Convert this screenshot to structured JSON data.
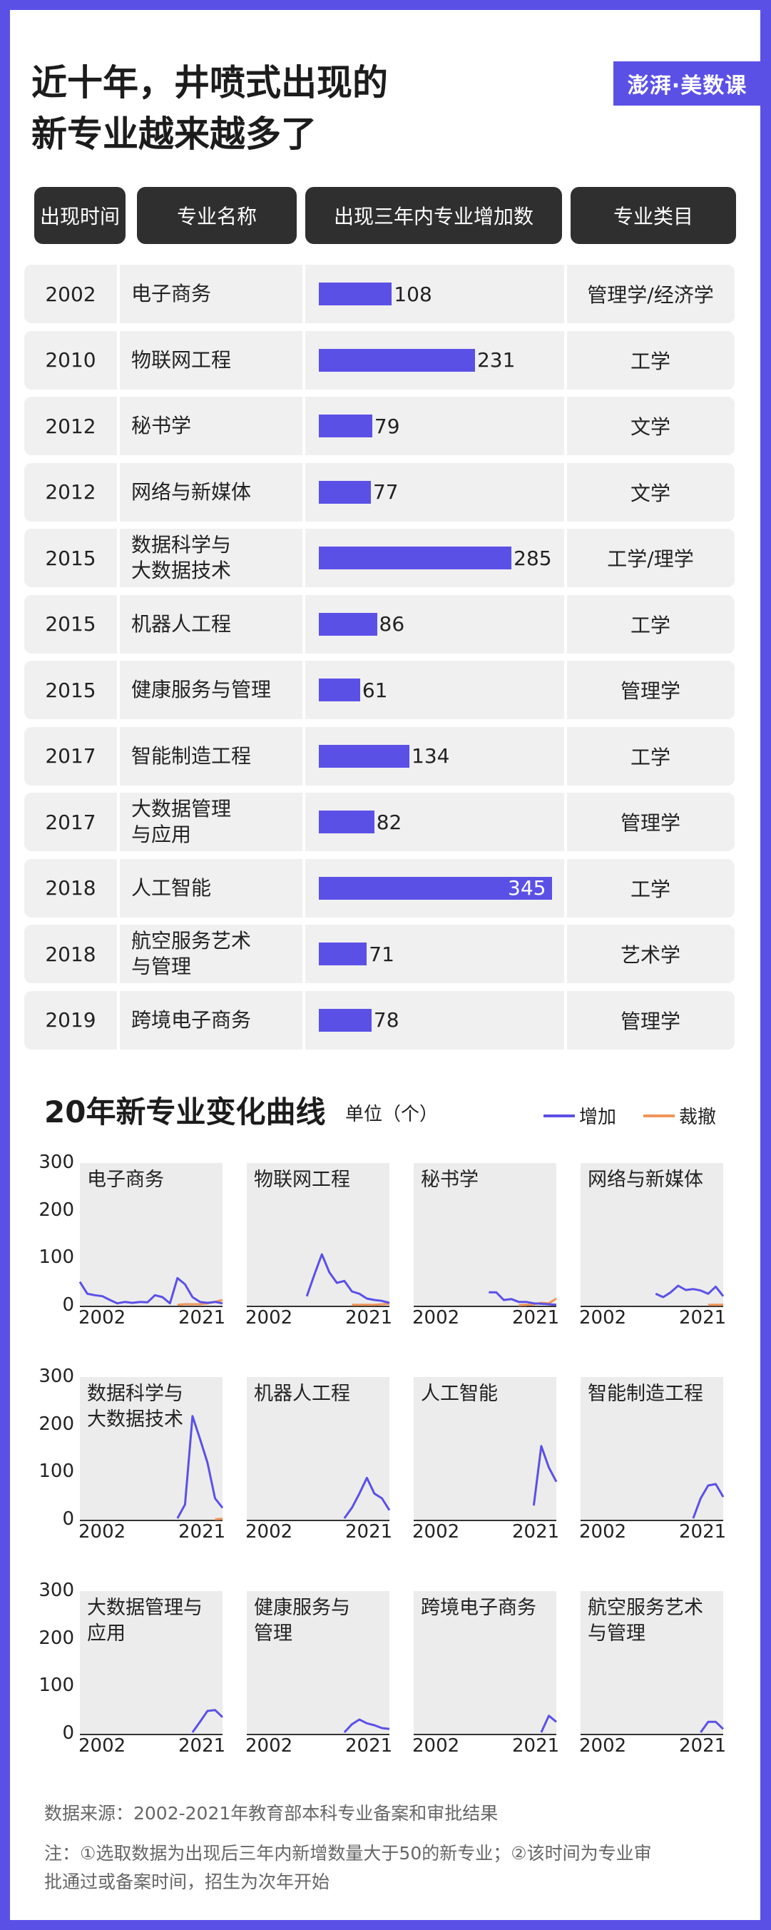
{
  "title_lines": [
    "近十年，井喷式出现的",
    "新专业越来越多了"
  ],
  "logo": "澎湃·美数课",
  "table": {
    "headers": [
      "出现时间",
      "专业名称",
      "出现三年内专业增加数",
      "专业类目"
    ],
    "rows": [
      {
        "year": "2002",
        "name": "电子商务",
        "value": 108,
        "category": "管理学/经济学"
      },
      {
        "year": "2010",
        "name": "物联网工程",
        "value": 231,
        "category": "工学"
      },
      {
        "year": "2012",
        "name": "秘书学",
        "value": 79,
        "category": "文学"
      },
      {
        "year": "2012",
        "name": "网络与新媒体",
        "value": 77,
        "category": "文学"
      },
      {
        "year": "2015",
        "name": "数据科学与\n大数据技术",
        "value": 285,
        "category": "工学/理学"
      },
      {
        "year": "2015",
        "name": "机器人工程",
        "value": 86,
        "category": "工学"
      },
      {
        "year": "2015",
        "name": "健康服务与管理",
        "value": 61,
        "category": "管理学"
      },
      {
        "year": "2017",
        "name": "智能制造工程",
        "value": 134,
        "category": "工学"
      },
      {
        "year": "2017",
        "name": "大数据管理\n与应用",
        "value": 82,
        "category": "管理学"
      },
      {
        "year": "2018",
        "name": "人工智能",
        "value": 345,
        "category": "工学"
      },
      {
        "year": "2018",
        "name": "航空服务艺术\n与管理",
        "value": 71,
        "category": "艺术学"
      },
      {
        "year": "2019",
        "name": "跨境电子商务",
        "value": 78,
        "category": "管理学"
      }
    ]
  },
  "section": {
    "title": "20年新专业变化曲线",
    "unit": "单位（个）",
    "legend": [
      {
        "label": "增加",
        "color": "#5b50e6"
      },
      {
        "label": "裁撤",
        "color": "#f0955a"
      }
    ]
  },
  "chart_data": {
    "type": "line",
    "y_ticks": [
      "300",
      "200",
      "100",
      "0"
    ],
    "ylim": [
      0,
      300
    ],
    "xlim": [
      2002,
      2021
    ],
    "x_tick_labels": [
      "2002",
      "2021"
    ],
    "colors": {
      "added": "#5b50e6",
      "removed": "#f0955a"
    },
    "panels": [
      {
        "name": "电子商务",
        "added": [
          [
            2002,
            50
          ],
          [
            2003,
            25
          ],
          [
            2004,
            22
          ],
          [
            2005,
            20
          ],
          [
            2006,
            12
          ],
          [
            2007,
            5
          ],
          [
            2008,
            8
          ],
          [
            2009,
            6
          ],
          [
            2010,
            8
          ],
          [
            2011,
            7
          ],
          [
            2012,
            22
          ],
          [
            2013,
            18
          ],
          [
            2014,
            5
          ],
          [
            2015,
            58
          ],
          [
            2016,
            45
          ],
          [
            2017,
            18
          ],
          [
            2018,
            8
          ],
          [
            2019,
            6
          ],
          [
            2020,
            8
          ],
          [
            2021,
            5
          ]
        ],
        "removed": [
          [
            2015,
            2
          ],
          [
            2016,
            3
          ],
          [
            2017,
            3
          ],
          [
            2018,
            3
          ],
          [
            2019,
            5
          ],
          [
            2020,
            8
          ],
          [
            2021,
            12
          ]
        ]
      },
      {
        "name": "物联网工程",
        "added": [
          [
            2010,
            20
          ],
          [
            2011,
            65
          ],
          [
            2012,
            108
          ],
          [
            2013,
            70
          ],
          [
            2014,
            48
          ],
          [
            2015,
            52
          ],
          [
            2016,
            30
          ],
          [
            2017,
            25
          ],
          [
            2018,
            15
          ],
          [
            2019,
            12
          ],
          [
            2020,
            10
          ],
          [
            2021,
            6
          ]
        ],
        "removed": [
          [
            2016,
            2
          ],
          [
            2017,
            2
          ],
          [
            2018,
            2
          ],
          [
            2019,
            2
          ],
          [
            2020,
            3
          ],
          [
            2021,
            4
          ]
        ]
      },
      {
        "name": "秘书学",
        "added": [
          [
            2012,
            28
          ],
          [
            2013,
            28
          ],
          [
            2014,
            12
          ],
          [
            2015,
            14
          ],
          [
            2016,
            8
          ],
          [
            2017,
            8
          ],
          [
            2018,
            5
          ],
          [
            2019,
            4
          ],
          [
            2020,
            3
          ],
          [
            2021,
            2
          ]
        ],
        "removed": [
          [
            2016,
            1
          ],
          [
            2017,
            2
          ],
          [
            2018,
            3
          ],
          [
            2019,
            6
          ],
          [
            2020,
            5
          ],
          [
            2021,
            15
          ]
        ]
      },
      {
        "name": "网络与新媒体",
        "added": [
          [
            2012,
            25
          ],
          [
            2013,
            18
          ],
          [
            2014,
            28
          ],
          [
            2015,
            42
          ],
          [
            2016,
            33
          ],
          [
            2017,
            35
          ],
          [
            2018,
            32
          ],
          [
            2019,
            25
          ],
          [
            2020,
            40
          ],
          [
            2021,
            20
          ]
        ],
        "removed": [
          [
            2019,
            2
          ],
          [
            2020,
            2
          ],
          [
            2021,
            2
          ]
        ]
      },
      {
        "name": "数据科学与\n大数据技术",
        "added": [
          [
            2015,
            3
          ],
          [
            2016,
            32
          ],
          [
            2017,
            218
          ],
          [
            2018,
            170
          ],
          [
            2019,
            120
          ],
          [
            2020,
            45
          ],
          [
            2021,
            25
          ]
        ],
        "removed": [
          [
            2020,
            1
          ],
          [
            2021,
            2
          ]
        ]
      },
      {
        "name": "机器人工程",
        "added": [
          [
            2015,
            3
          ],
          [
            2016,
            25
          ],
          [
            2017,
            55
          ],
          [
            2018,
            88
          ],
          [
            2019,
            55
          ],
          [
            2020,
            45
          ],
          [
            2021,
            20
          ]
        ],
        "removed": []
      },
      {
        "name": "人工智能",
        "added": [
          [
            2018,
            30
          ],
          [
            2019,
            155
          ],
          [
            2020,
            110
          ],
          [
            2021,
            80
          ]
        ],
        "removed": []
      },
      {
        "name": "智能制造工程",
        "added": [
          [
            2017,
            3
          ],
          [
            2018,
            45
          ],
          [
            2019,
            72
          ],
          [
            2020,
            75
          ],
          [
            2021,
            48
          ]
        ],
        "removed": []
      },
      {
        "name": "大数据管理与\n应用",
        "added": [
          [
            2017,
            3
          ],
          [
            2018,
            25
          ],
          [
            2019,
            48
          ],
          [
            2020,
            50
          ],
          [
            2021,
            35
          ]
        ],
        "removed": []
      },
      {
        "name": "健康服务与\n管理",
        "added": [
          [
            2015,
            3
          ],
          [
            2016,
            20
          ],
          [
            2017,
            30
          ],
          [
            2018,
            22
          ],
          [
            2019,
            18
          ],
          [
            2020,
            12
          ],
          [
            2021,
            10
          ]
        ],
        "removed": []
      },
      {
        "name": "跨境电子商务",
        "added": [
          [
            2019,
            3
          ],
          [
            2020,
            38
          ],
          [
            2021,
            25
          ]
        ],
        "removed": []
      },
      {
        "name": "航空服务艺术\n与管理",
        "added": [
          [
            2018,
            3
          ],
          [
            2019,
            25
          ],
          [
            2020,
            25
          ],
          [
            2021,
            10
          ]
        ],
        "removed": []
      }
    ]
  },
  "footer": {
    "source": "数据来源：2002-2021年教育部本科专业备案和审批结果",
    "note_lines": [
      "注：①选取数据为出现后三年内新增数量大于50的新专业；②该时间为专业审",
      "批通过或备案时间，招生为次年开始"
    ]
  }
}
